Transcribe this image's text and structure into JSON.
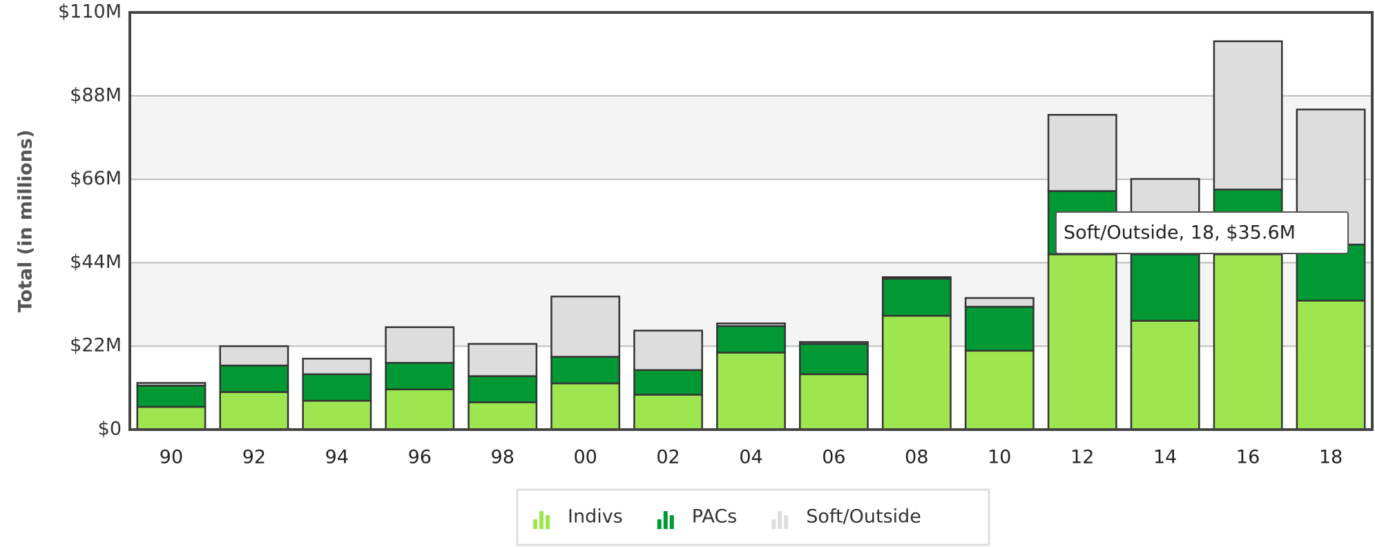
{
  "chart_data": {
    "type": "stacked_bar",
    "y_label": "Total (in millions)",
    "categories": [
      "90",
      "92",
      "94",
      "96",
      "98",
      "00",
      "02",
      "04",
      "06",
      "08",
      "10",
      "12",
      "14",
      "16",
      "18"
    ],
    "series": [
      {
        "name": "Indivs",
        "color": "#9de64f",
        "values": [
          6.0,
          9.9,
          7.6,
          10.6,
          7.2,
          12.2,
          9.2,
          20.3,
          14.6,
          30.0,
          20.8,
          46.2,
          28.7,
          46.2,
          34.0
        ]
      },
      {
        "name": "PACs",
        "color": "#009933",
        "values": [
          5.6,
          7.0,
          7.0,
          7.0,
          6.9,
          7.0,
          6.5,
          7.0,
          8.0,
          9.8,
          11.6,
          16.7,
          17.5,
          17.1,
          14.8
        ]
      },
      {
        "name": "Soft/Outside",
        "color": "#dddddd",
        "values": [
          0.7,
          5.1,
          4.1,
          9.4,
          8.5,
          15.9,
          10.4,
          0.7,
          0.5,
          0.4,
          2.3,
          20.1,
          19.9,
          39.1,
          35.6
        ]
      }
    ],
    "ylim": [
      0,
      110
    ],
    "yticks": [
      {
        "value": 0,
        "label": "$0"
      },
      {
        "value": 22,
        "label": "$22M"
      },
      {
        "value": 44,
        "label": "$44M"
      },
      {
        "value": 66,
        "label": "$66M"
      },
      {
        "value": 88,
        "label": "$88M"
      },
      {
        "value": 110,
        "label": "$110M"
      }
    ],
    "grid": true,
    "legend": "bottom",
    "tooltip": "Soft/Outside, 18, $35.6M"
  }
}
